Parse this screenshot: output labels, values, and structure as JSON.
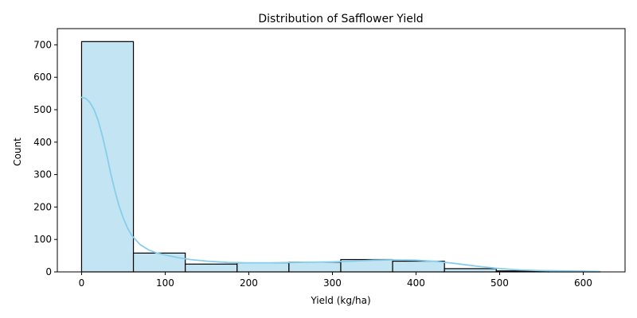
{
  "chart_data": {
    "type": "bar",
    "title": "Distribution of Safflower Yield",
    "xlabel": "Yield (kg/ha)",
    "ylabel": "Count",
    "xlim": [
      -29,
      650
    ],
    "ylim": [
      0,
      750
    ],
    "xticks": [
      0,
      100,
      200,
      300,
      400,
      500,
      600
    ],
    "yticks": [
      0,
      100,
      200,
      300,
      400,
      500,
      600,
      700
    ],
    "bins": [
      {
        "x0": 0,
        "x1": 62,
        "count": 710
      },
      {
        "x0": 62,
        "x1": 124,
        "count": 58
      },
      {
        "x0": 124,
        "x1": 186,
        "count": 24
      },
      {
        "x0": 186,
        "x1": 248,
        "count": 28
      },
      {
        "x0": 248,
        "x1": 310,
        "count": 30
      },
      {
        "x0": 310,
        "x1": 372,
        "count": 38
      },
      {
        "x0": 372,
        "x1": 434,
        "count": 33
      },
      {
        "x0": 434,
        "x1": 496,
        "count": 10
      },
      {
        "x0": 496,
        "x1": 558,
        "count": 3
      },
      {
        "x0": 558,
        "x1": 620,
        "count": 1
      }
    ],
    "kde": {
      "x": [
        0,
        5,
        10,
        15,
        20,
        25,
        30,
        35,
        40,
        45,
        50,
        55,
        60,
        70,
        80,
        90,
        100,
        115,
        130,
        150,
        175,
        200,
        225,
        250,
        275,
        300,
        325,
        350,
        375,
        400,
        425,
        450,
        475,
        500,
        525,
        550,
        575,
        600,
        620
      ],
      "y": [
        538,
        535,
        522,
        500,
        465,
        418,
        362,
        302,
        248,
        202,
        165,
        135,
        112,
        84,
        68,
        58,
        52,
        44,
        38,
        33,
        29,
        28,
        28,
        29,
        30,
        31,
        33,
        36,
        37,
        36,
        32,
        25,
        17,
        10,
        6,
        4,
        3,
        2,
        1
      ]
    },
    "colors": {
      "bar_fill": "#c2e4f3",
      "bar_edge": "#000000",
      "kde_line": "#87ceeb",
      "axis": "#000000"
    }
  }
}
